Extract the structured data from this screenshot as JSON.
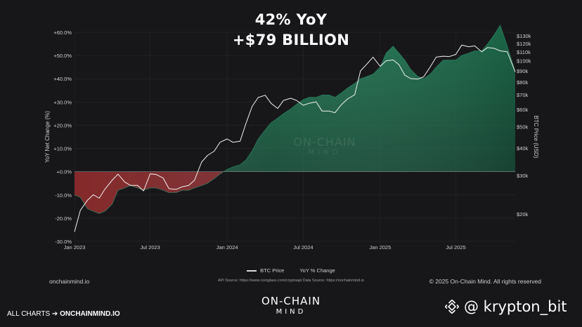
{
  "headline": {
    "line1": "42% YoY",
    "line2": "+$79 BILLION"
  },
  "footer": {
    "all_charts_prefix": "ALL CHARTS",
    "arrow": "➔",
    "all_charts_site": "ONCHAINMIND.IO",
    "brand_line1": "ON-CHAIN",
    "brand_line2": "MIND",
    "handle": "@ krypton_bit"
  },
  "chart_meta": {
    "site": "onchainmind.io",
    "copyright": "© 2025 On-Chain Mind. All rights reserved",
    "api_note": "API Source: https://www.coinglass.com/cryptoapi Data Source: https://onchainmind.io",
    "watermark_line1": "ON-CHAIN",
    "watermark_line2": "MIND"
  },
  "colors": {
    "positive_area": "#1f7a55",
    "positive_area_deep": "#0e5a46",
    "negative_area": "#7a2426",
    "price_line": "#f2f2f2",
    "background": "#17171a"
  },
  "chart_data": {
    "type": "area",
    "title": "",
    "xlabel": "",
    "ylabel": "YoY Net Change (%)",
    "y2label": "BTC Price (USD)",
    "x_ticks": [
      "Jan 2023",
      "Jul 2023",
      "Jan 2024",
      "Jul 2024",
      "Jan 2025",
      "Jul 2025"
    ],
    "y_ticks": [
      "+60.0%",
      "+50.0%",
      "+40.0%",
      "+30.0%",
      "+20.0%",
      "+10.0%",
      "+0.0%",
      "-10.0%",
      "-20.0%",
      "-30.0%"
    ],
    "y_tick_values": [
      60,
      50,
      40,
      30,
      20,
      10,
      0,
      -10,
      -20,
      -30
    ],
    "y2_ticks": [
      "$130k",
      "$120k",
      "$110k",
      "$100k",
      "$90k",
      "$80k",
      "$70k",
      "$60k",
      "$50k",
      "$40k",
      "$30k",
      "$20k"
    ],
    "y2_tick_values": [
      130000,
      120000,
      110000,
      100000,
      90000,
      80000,
      70000,
      60000,
      50000,
      40000,
      30000,
      20000
    ],
    "ylim": [
      -30,
      60
    ],
    "y2lim": [
      15000,
      135000
    ],
    "y2_scale": "log",
    "xlim": [
      "2023-01-01",
      "2025-11-20"
    ],
    "grid": true,
    "legend_position": "bottom-center",
    "series": [
      {
        "name": "YoY % Change",
        "kind": "area",
        "x": [
          "2023-01-01",
          "2023-01-15",
          "2023-02-01",
          "2023-02-15",
          "2023-03-01",
          "2023-03-15",
          "2023-04-01",
          "2023-04-15",
          "2023-05-01",
          "2023-05-15",
          "2023-06-01",
          "2023-06-15",
          "2023-07-01",
          "2023-07-15",
          "2023-08-01",
          "2023-08-15",
          "2023-09-01",
          "2023-09-15",
          "2023-10-01",
          "2023-10-15",
          "2023-11-01",
          "2023-11-15",
          "2023-12-01",
          "2023-12-15",
          "2024-01-01",
          "2024-01-15",
          "2024-02-01",
          "2024-02-15",
          "2024-03-01",
          "2024-03-15",
          "2024-04-01",
          "2024-04-15",
          "2024-05-01",
          "2024-05-15",
          "2024-06-01",
          "2024-06-15",
          "2024-07-01",
          "2024-07-15",
          "2024-08-01",
          "2024-08-15",
          "2024-09-01",
          "2024-09-15",
          "2024-10-01",
          "2024-10-15",
          "2024-11-01",
          "2024-11-15",
          "2024-12-01",
          "2024-12-15",
          "2025-01-01",
          "2025-01-15",
          "2025-02-01",
          "2025-02-15",
          "2025-03-01",
          "2025-03-15",
          "2025-04-01",
          "2025-04-15",
          "2025-05-01",
          "2025-05-15",
          "2025-06-01",
          "2025-06-15",
          "2025-07-01",
          "2025-07-15",
          "2025-08-01",
          "2025-08-15",
          "2025-09-01",
          "2025-09-15",
          "2025-10-01",
          "2025-10-15",
          "2025-11-01",
          "2025-11-20"
        ],
        "values": [
          -10,
          -11,
          -16,
          -17,
          -18,
          -17,
          -14,
          -8,
          -7,
          -6,
          -7,
          -8,
          -7,
          -7,
          -8,
          -9,
          -9,
          -8,
          -8,
          -7,
          -6,
          -5,
          -3,
          -1,
          1,
          2,
          3,
          5,
          9,
          14,
          18,
          21,
          23,
          25,
          27,
          29,
          31,
          32,
          32,
          33,
          33,
          32,
          34,
          36,
          38,
          40,
          41,
          42,
          45,
          51,
          54,
          51,
          48,
          44,
          41,
          40,
          42,
          45,
          48,
          48,
          48,
          50,
          51,
          52,
          52,
          55,
          59,
          63,
          54,
          43
        ]
      },
      {
        "name": "BTC Price",
        "kind": "line",
        "x": [
          "2023-01-01",
          "2023-01-15",
          "2023-02-01",
          "2023-02-15",
          "2023-03-01",
          "2023-03-15",
          "2023-04-01",
          "2023-04-15",
          "2023-05-01",
          "2023-05-15",
          "2023-06-01",
          "2023-06-15",
          "2023-07-01",
          "2023-07-15",
          "2023-08-01",
          "2023-08-15",
          "2023-09-01",
          "2023-09-15",
          "2023-10-01",
          "2023-10-15",
          "2023-11-01",
          "2023-11-15",
          "2023-12-01",
          "2023-12-15",
          "2024-01-01",
          "2024-01-15",
          "2024-02-01",
          "2024-02-15",
          "2024-03-01",
          "2024-03-15",
          "2024-04-01",
          "2024-04-15",
          "2024-05-01",
          "2024-05-15",
          "2024-06-01",
          "2024-06-15",
          "2024-07-01",
          "2024-07-15",
          "2024-08-01",
          "2024-08-15",
          "2024-09-01",
          "2024-09-15",
          "2024-10-01",
          "2024-10-15",
          "2024-11-01",
          "2024-11-15",
          "2024-12-01",
          "2024-12-15",
          "2025-01-01",
          "2025-01-15",
          "2025-02-01",
          "2025-02-15",
          "2025-03-01",
          "2025-03-15",
          "2025-04-01",
          "2025-04-15",
          "2025-05-01",
          "2025-05-15",
          "2025-06-01",
          "2025-06-15",
          "2025-07-01",
          "2025-07-15",
          "2025-08-01",
          "2025-08-15",
          "2025-09-01",
          "2025-09-15",
          "2025-10-01",
          "2025-10-15",
          "2025-11-01",
          "2025-11-20"
        ],
        "values": [
          16600,
          20800,
          23100,
          24500,
          23600,
          26000,
          28500,
          30400,
          28000,
          27000,
          27000,
          25500,
          30500,
          30300,
          29200,
          26100,
          25900,
          26600,
          27000,
          28500,
          34500,
          37000,
          38700,
          42500,
          44000,
          42500,
          43000,
          51800,
          62000,
          68000,
          69700,
          64000,
          60600,
          66000,
          67500,
          66000,
          62700,
          64000,
          65000,
          59000,
          59000,
          58000,
          63300,
          67000,
          70000,
          90000,
          97000,
          104000,
          94400,
          100000,
          101000,
          96000,
          86000,
          83000,
          82500,
          84500,
          94000,
          104000,
          105000,
          104500,
          107000,
          118000,
          116000,
          117000,
          110000,
          115000,
          114000,
          111000,
          110000,
          89000
        ]
      }
    ]
  }
}
